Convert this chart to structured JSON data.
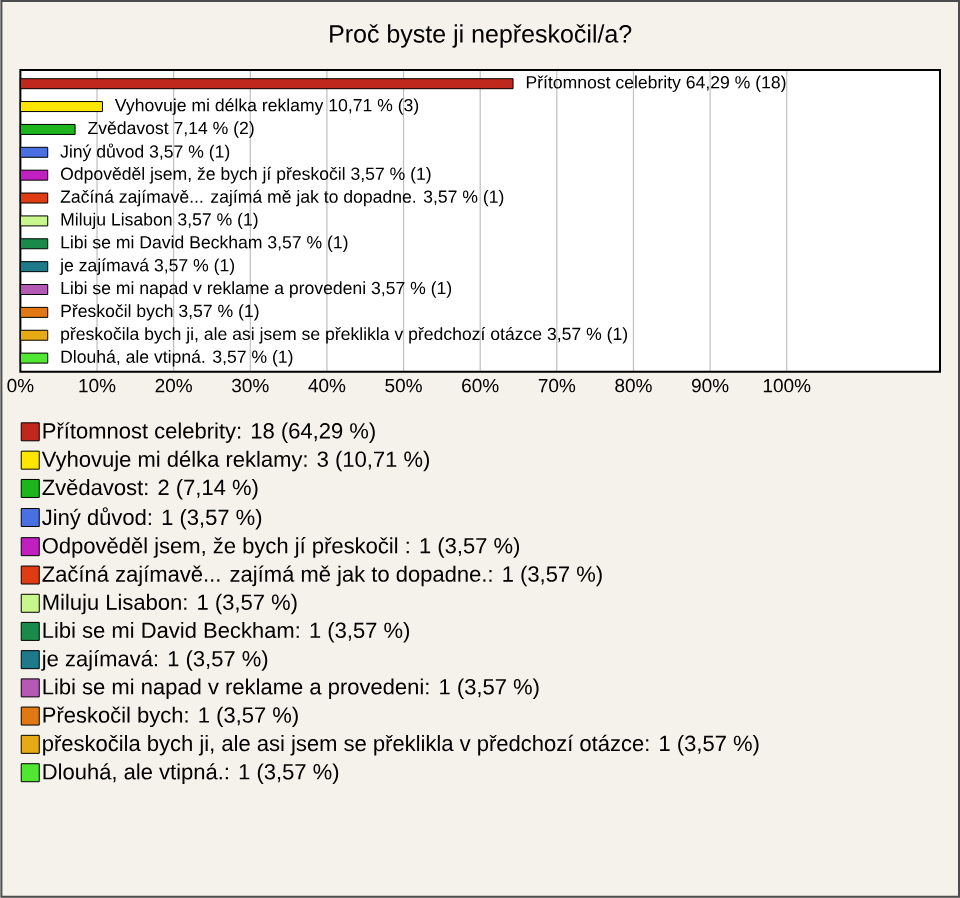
{
  "chart_data": {
    "type": "bar",
    "orientation": "horizontal",
    "title": "Proč byste ji nepřeskočil/a?",
    "categories": [
      null,
      null,
      null,
      null,
      null,
      null,
      null,
      null,
      null,
      null,
      null,
      null,
      null
    ],
    "xlim": [
      0,
      120
    ],
    "xticks": [
      {
        "value": 0,
        "label": "0%"
      },
      {
        "value": 10,
        "label": "10%"
      },
      {
        "value": 20,
        "label": "20%"
      },
      {
        "value": 30,
        "label": "30%"
      },
      {
        "value": 40,
        "label": "40%"
      },
      {
        "value": 50,
        "label": "50%"
      },
      {
        "value": 60,
        "label": "60%"
      },
      {
        "value": 70,
        "label": "70%"
      },
      {
        "value": 80,
        "label": "80%"
      },
      {
        "value": 90,
        "label": "90%"
      },
      {
        "value": 100,
        "label": "100%"
      }
    ],
    "grid": "x",
    "legend": "bottom",
    "series": [
      {
        "name": "Přítomnost celebrity: 18 (64,29 %)",
        "color": "#c0281e",
        "values": [
          64.29,
          null,
          null,
          null,
          null,
          null,
          null,
          null,
          null,
          null,
          null,
          null,
          null
        ],
        "value_labels": [
          "Přítomnost celebrity 64,29 % (18)",
          null,
          null,
          null,
          null,
          null,
          null,
          null,
          null,
          null,
          null,
          null,
          null
        ]
      },
      {
        "name": "Vyhovuje mi délka reklamy: 3 (10,71 %)",
        "color": "#ffe600",
        "values": [
          null,
          10.71,
          null,
          null,
          null,
          null,
          null,
          null,
          null,
          null,
          null,
          null,
          null
        ],
        "value_labels": [
          null,
          "Vyhovuje mi délka reklamy 10,71 % (3)",
          null,
          null,
          null,
          null,
          null,
          null,
          null,
          null,
          null,
          null,
          null
        ]
      },
      {
        "name": "Zvědavost: 2 (7,14 %)",
        "color": "#1eb41e",
        "values": [
          null,
          null,
          7.14,
          null,
          null,
          null,
          null,
          null,
          null,
          null,
          null,
          null,
          null
        ],
        "value_labels": [
          null,
          null,
          "Zvědavost 7,14 % (2)",
          null,
          null,
          null,
          null,
          null,
          null,
          null,
          null,
          null,
          null
        ]
      },
      {
        "name": "Jiný důvod: 1 (3,57 %)",
        "color": "#4a6fe0",
        "values": [
          null,
          null,
          null,
          3.57,
          null,
          null,
          null,
          null,
          null,
          null,
          null,
          null,
          null
        ],
        "value_labels": [
          null,
          null,
          null,
          "Jiný důvod 3,57 % (1)",
          null,
          null,
          null,
          null,
          null,
          null,
          null,
          null,
          null
        ]
      },
      {
        "name": "Odpověděl jsem, že bych jí přeskočil : 1 (3,57 %)",
        "color": "#c020c0",
        "values": [
          null,
          null,
          null,
          null,
          3.57,
          null,
          null,
          null,
          null,
          null,
          null,
          null,
          null
        ],
        "value_labels": [
          null,
          null,
          null,
          null,
          "Odpověděl jsem, že bych jí přeskočil 3,57 % (1)",
          null,
          null,
          null,
          null,
          null,
          null,
          null,
          null
        ]
      },
      {
        "name": "Začíná zajímavě... zajímá mě jak to dopadne.: 1 (3,57 %)",
        "color": "#e03c14",
        "values": [
          null,
          null,
          null,
          null,
          null,
          3.57,
          null,
          null,
          null,
          null,
          null,
          null,
          null
        ],
        "value_labels": [
          null,
          null,
          null,
          null,
          null,
          "Začíná zajímavě... zajímá mě jak to dopadne. 3,57 % (1)",
          null,
          null,
          null,
          null,
          null,
          null,
          null
        ]
      },
      {
        "name": "Miluju Lisabon: 1 (3,57 %)",
        "color": "#c8f58c",
        "values": [
          null,
          null,
          null,
          null,
          null,
          null,
          3.57,
          null,
          null,
          null,
          null,
          null,
          null
        ],
        "value_labels": [
          null,
          null,
          null,
          null,
          null,
          null,
          "Miluju Lisabon 3,57 % (1)",
          null,
          null,
          null,
          null,
          null,
          null
        ]
      },
      {
        "name": "Libi se mi David Beckham: 1 (3,57 %)",
        "color": "#1a8a4a",
        "values": [
          null,
          null,
          null,
          null,
          null,
          null,
          null,
          3.57,
          null,
          null,
          null,
          null,
          null
        ],
        "value_labels": [
          null,
          null,
          null,
          null,
          null,
          null,
          null,
          "Libi se mi David Beckham 3,57 % (1)",
          null,
          null,
          null,
          null,
          null
        ]
      },
      {
        "name": "je zajímavá: 1 (3,57 %)",
        "color": "#1e7a8a",
        "values": [
          null,
          null,
          null,
          null,
          null,
          null,
          null,
          null,
          3.57,
          null,
          null,
          null,
          null
        ],
        "value_labels": [
          null,
          null,
          null,
          null,
          null,
          null,
          null,
          null,
          "je zajímavá 3,57 % (1)",
          null,
          null,
          null,
          null
        ]
      },
      {
        "name": "Libi se mi napad v reklame a provedeni: 1 (3,57 %)",
        "color": "#b45ab4",
        "values": [
          null,
          null,
          null,
          null,
          null,
          null,
          null,
          null,
          null,
          3.57,
          null,
          null,
          null
        ],
        "value_labels": [
          null,
          null,
          null,
          null,
          null,
          null,
          null,
          null,
          null,
          "Libi se mi napad v reklame a provedeni 3,57 % (1)",
          null,
          null,
          null
        ]
      },
      {
        "name": "Přeskočil bych: 1 (3,57 %)",
        "color": "#e07814",
        "values": [
          null,
          null,
          null,
          null,
          null,
          null,
          null,
          null,
          null,
          null,
          3.57,
          null,
          null
        ],
        "value_labels": [
          null,
          null,
          null,
          null,
          null,
          null,
          null,
          null,
          null,
          null,
          "Přeskočil bych 3,57 % (1)",
          null,
          null
        ]
      },
      {
        "name": "přeskočila bych ji, ale asi jsem se překlikla v předchozí otázce: 1 (3,57 %)",
        "color": "#e6aa14",
        "values": [
          null,
          null,
          null,
          null,
          null,
          null,
          null,
          null,
          null,
          null,
          null,
          3.57,
          null
        ],
        "value_labels": [
          null,
          null,
          null,
          null,
          null,
          null,
          null,
          null,
          null,
          null,
          null,
          "přeskočila bych ji, ale asi jsem se překlikla v předchozí otázce 3,57 % (1)",
          null
        ]
      },
      {
        "name": "Dlouhá, ale vtipná.: 1 (3,57 %)",
        "color": "#50e632",
        "values": [
          null,
          null,
          null,
          null,
          null,
          null,
          null,
          null,
          null,
          null,
          null,
          null,
          3.57
        ],
        "value_labels": [
          null,
          null,
          null,
          null,
          null,
          null,
          null,
          null,
          null,
          null,
          null,
          null,
          "Dlouhá, ale vtipná. 3,57 % (1)"
        ]
      }
    ]
  }
}
